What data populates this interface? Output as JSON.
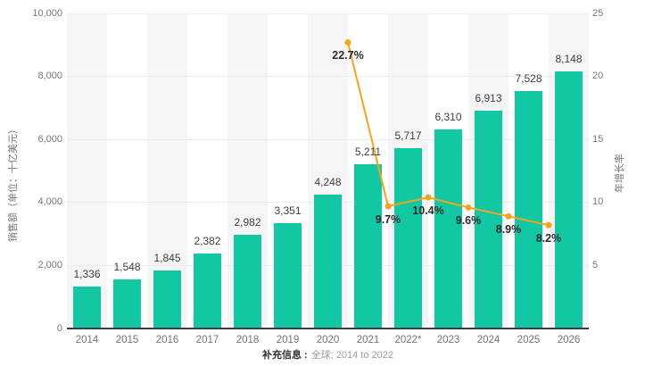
{
  "chart_data": {
    "type": "bar-line-combo",
    "title": "",
    "categories": [
      "2014",
      "2015",
      "2016",
      "2017",
      "2018",
      "2019",
      "2020",
      "2021",
      "2022*",
      "2023",
      "2024",
      "2025",
      "2026"
    ],
    "bar_series": {
      "name": "销售额",
      "color": "#12C7A4",
      "values": [
        1336,
        1548,
        1845,
        2382,
        2982,
        3351,
        4248,
        5211,
        5717,
        6310,
        6913,
        7528,
        8148
      ],
      "labels": [
        "1,336",
        "1,548",
        "1,845",
        "2,382",
        "2,982",
        "3,351",
        "4,248",
        "5,211",
        "5,717",
        "6,310",
        "6,913",
        "7,528",
        "8,148"
      ]
    },
    "line_series": {
      "name": "年增长率",
      "color": "#F6A31E",
      "values": [
        22.7,
        9.7,
        10.4,
        9.6,
        8.9,
        8.2
      ],
      "labels": [
        "22.7%",
        "9.7%",
        "10.4%",
        "9.6%",
        "8.9%",
        "8.2%"
      ],
      "points_between_categories": true,
      "first_point_between_category_indexes": [
        6,
        7
      ]
    },
    "left_axis": {
      "label": "销售额（单位：十亿美元）",
      "max": 10000,
      "ticks": [
        {
          "label": "0",
          "value": 0
        },
        {
          "label": "2,000",
          "value": 2000
        },
        {
          "label": "4,000",
          "value": 4000
        },
        {
          "label": "6,000",
          "value": 6000
        },
        {
          "label": "8,000",
          "value": 8000
        },
        {
          "label": "10,000",
          "value": 10000
        }
      ]
    },
    "right_axis": {
      "label": "年增长率",
      "max": 25,
      "ticks": [
        {
          "label": "5",
          "value": 5
        },
        {
          "label": "10",
          "value": 10
        },
        {
          "label": "15",
          "value": 15
        },
        {
          "label": "20",
          "value": 20
        },
        {
          "label": "25",
          "value": 25
        }
      ]
    },
    "grid": {
      "stripe_color": "#F5F5F5",
      "gridline_color": "#ECECEC",
      "axisline_color": "#3D3D3D",
      "legend": "none"
    },
    "footnote": {
      "prefix": "补充信息 :",
      "text": "全球; 2014 to 2022"
    }
  }
}
